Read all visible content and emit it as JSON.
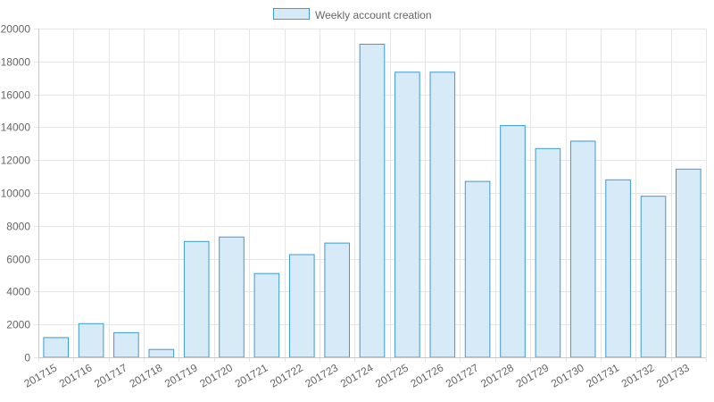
{
  "chart_data": {
    "type": "bar",
    "series": [
      {
        "name": "Weekly account creation",
        "values": [
          1200,
          2050,
          1500,
          480,
          7050,
          7320,
          5100,
          6250,
          6950,
          19050,
          17350,
          17350,
          10700,
          14100,
          12700,
          13150,
          10800,
          9800,
          11450
        ]
      }
    ],
    "categories": [
      "201715",
      "201716",
      "201717",
      "201718",
      "201719",
      "201720",
      "201721",
      "201722",
      "201723",
      "201724",
      "201725",
      "201726",
      "201727",
      "201728",
      "201729",
      "201730",
      "201731",
      "201732",
      "201733"
    ],
    "ylim": [
      0,
      20000
    ],
    "y_ticks": [
      0,
      2000,
      4000,
      6000,
      8000,
      10000,
      12000,
      14000,
      16000,
      18000,
      20000
    ],
    "grid": true,
    "legend_position": "top-center",
    "title": "",
    "xlabel": "",
    "ylabel": ""
  },
  "colors": {
    "bar_fill": "#d6eaf8",
    "bar_stroke": "#3a9bd5",
    "grid": "#e5e5e5",
    "axis": "#c8c8c8",
    "text": "#666666"
  }
}
